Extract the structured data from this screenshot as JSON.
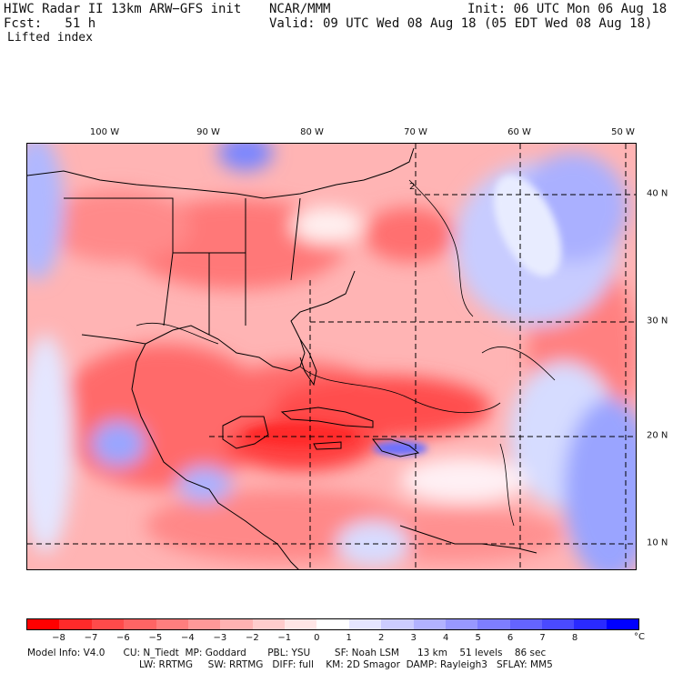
{
  "header": {
    "title": "HIWC Radar II 13km ARW−GFS init",
    "fcst": "Fcst:   51 h",
    "field": "Lifted index",
    "center": "NCAR/MMM",
    "init": "Init: 06 UTC Mon 06 Aug 18",
    "valid": "Valid: 09 UTC Wed 08 Aug 18 (05 EDT Wed 08 Aug 18)"
  },
  "longitude_labels": [
    "100 W",
    "90 W",
    "80 W",
    "70 W",
    "60 W",
    "50 W"
  ],
  "latitude_labels": [
    "40 N",
    "30 N",
    "20 N",
    "10 N"
  ],
  "colorbar": {
    "ticks": [
      "−8",
      "−7",
      "−6",
      "−5",
      "−4",
      "−3",
      "−2",
      "−1",
      "0",
      "1",
      "2",
      "3",
      "4",
      "5",
      "6",
      "7",
      "8"
    ],
    "unit": "°C",
    "colors": [
      "#ff0000",
      "#ff2a2a",
      "#ff4a4a",
      "#ff6464",
      "#ff7e7e",
      "#ff9898",
      "#ffb2b2",
      "#ffcccc",
      "#ffe6e6",
      "#ffffff",
      "#e6e6ff",
      "#ccccff",
      "#b2b2ff",
      "#9898ff",
      "#7e7eff",
      "#6464ff",
      "#4a4aff",
      "#2a2aff",
      "#0000ff"
    ]
  },
  "footer": {
    "line1": "Model Info: V4.0      CU: N_Tiedt  MP: Goddard       PBL: YSU        SF: Noah LSM      13 km    51 levels    86 sec",
    "line2": "LW: RRTMG     SW: RRTMG   DIFF: full    KM: 2D Smagor  DAMP: Rayleigh3   SFLAY: MM5"
  },
  "contour_label": "2"
}
